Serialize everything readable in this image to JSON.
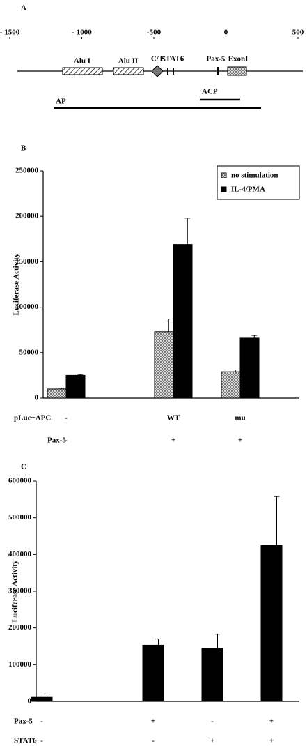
{
  "diagram": {
    "panel_label": "A",
    "xlim": [
      -1500,
      500
    ],
    "xticks": [
      {
        "value": -1500,
        "label": "- 1500"
      },
      {
        "value": -1000,
        "label": "- 1000"
      },
      {
        "value": -500,
        "label": "-500"
      },
      0,
      500
    ],
    "features": [
      "Alu I",
      "Alu II",
      "C/T",
      "STAT6",
      "Pax-5",
      "ExonI"
    ],
    "fragments": [
      "ACP",
      "AP"
    ]
  },
  "chart_data": [
    {
      "type": "bar",
      "panel_label": "B",
      "y_label": "Luciferase Activity",
      "ylim": [
        0,
        250000
      ],
      "yticks": [
        0,
        50000,
        100000,
        150000,
        200000,
        250000
      ],
      "row_labels": [
        "pLuc+APC",
        "Pax-5"
      ],
      "rows": [
        [
          "-",
          "WT",
          "mu"
        ],
        [
          "-",
          "+",
          "+"
        ]
      ],
      "legend": "upper right",
      "series": [
        {
          "name": "no stimulation",
          "color": "#cccccc",
          "values": [
            10000,
            73000,
            29000
          ],
          "errors": [
            1000,
            14000,
            2000
          ]
        },
        {
          "name": "IL-4/PMA",
          "color": "#000000",
          "values": [
            25000,
            169000,
            66000
          ],
          "errors": [
            1000,
            29000,
            3000
          ]
        }
      ]
    },
    {
      "type": "bar",
      "panel_label": "C",
      "y_label": "Luciferase Activity",
      "ylim": [
        0,
        600000
      ],
      "yticks": [
        0,
        100000,
        200000,
        300000,
        400000,
        500000,
        600000
      ],
      "row_labels": [
        "Pax-5",
        "STAT6"
      ],
      "rows": [
        [
          "-",
          "+",
          "-",
          "+"
        ],
        [
          "-",
          "-",
          "+",
          "+"
        ]
      ],
      "series": [
        {
          "name": null,
          "color": "#000000",
          "values": [
            11000,
            153000,
            145000,
            425000
          ],
          "errors": [
            9000,
            17000,
            38000,
            133000
          ]
        }
      ]
    }
  ]
}
